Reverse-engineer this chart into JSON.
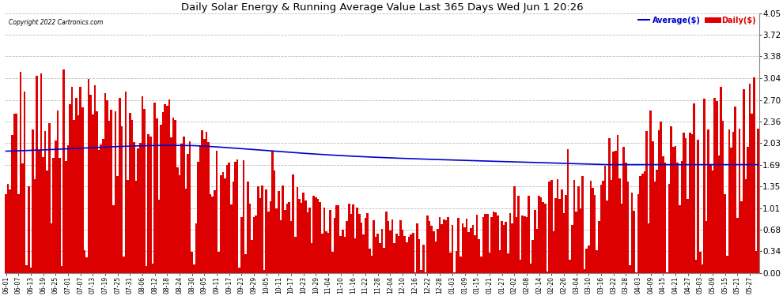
{
  "title": "Daily Solar Energy & Running Average Value Last 365 Days Wed Jun 1 20:26",
  "copyright": "Copyright 2022 Cartronics.com",
  "legend_avg": "Average($)",
  "legend_daily": "Daily($)",
  "bar_color": "#dd0000",
  "avg_color": "#0000cc",
  "bg_color": "#ffffff",
  "grid_color": "#bbbbbb",
  "ylim": [
    0.0,
    4.05
  ],
  "yticks": [
    0.0,
    0.34,
    0.68,
    1.01,
    1.35,
    1.69,
    2.03,
    2.36,
    2.7,
    3.04,
    3.38,
    3.72,
    4.05
  ],
  "x_labels": [
    "06-01",
    "06-07",
    "06-13",
    "06-19",
    "06-25",
    "07-01",
    "07-07",
    "07-13",
    "07-19",
    "07-25",
    "07-31",
    "08-06",
    "08-12",
    "08-18",
    "08-24",
    "08-30",
    "09-05",
    "09-11",
    "09-17",
    "09-23",
    "09-29",
    "10-05",
    "10-11",
    "10-17",
    "10-23",
    "10-29",
    "11-04",
    "11-10",
    "11-16",
    "11-22",
    "11-28",
    "12-04",
    "12-10",
    "12-16",
    "12-22",
    "12-28",
    "01-03",
    "01-09",
    "01-15",
    "01-21",
    "01-27",
    "02-02",
    "02-08",
    "02-14",
    "02-20",
    "02-26",
    "03-04",
    "03-10",
    "03-16",
    "03-22",
    "03-28",
    "04-03",
    "04-09",
    "04-15",
    "04-21",
    "04-27",
    "05-03",
    "05-09",
    "05-15",
    "05-21",
    "05-27"
  ],
  "avg_values": [
    1.88,
    1.9,
    1.91,
    1.93,
    1.94,
    1.95,
    1.96,
    1.97,
    1.97,
    1.98,
    1.98,
    1.99,
    1.99,
    1.99,
    1.99,
    1.99,
    1.99,
    1.99,
    1.99,
    1.98,
    1.98,
    1.97,
    1.97,
    1.96,
    1.95,
    1.94,
    1.93,
    1.92,
    1.91,
    1.9,
    1.89,
    1.88,
    1.87,
    1.86,
    1.85,
    1.84,
    1.83,
    1.82,
    1.81,
    1.8,
    1.79,
    1.78,
    1.77,
    1.76,
    1.75,
    1.74,
    1.74,
    1.74,
    1.73,
    1.73,
    1.73,
    1.73,
    1.73,
    1.73,
    1.74,
    1.74,
    1.74,
    1.74,
    1.74,
    1.74,
    1.74
  ]
}
